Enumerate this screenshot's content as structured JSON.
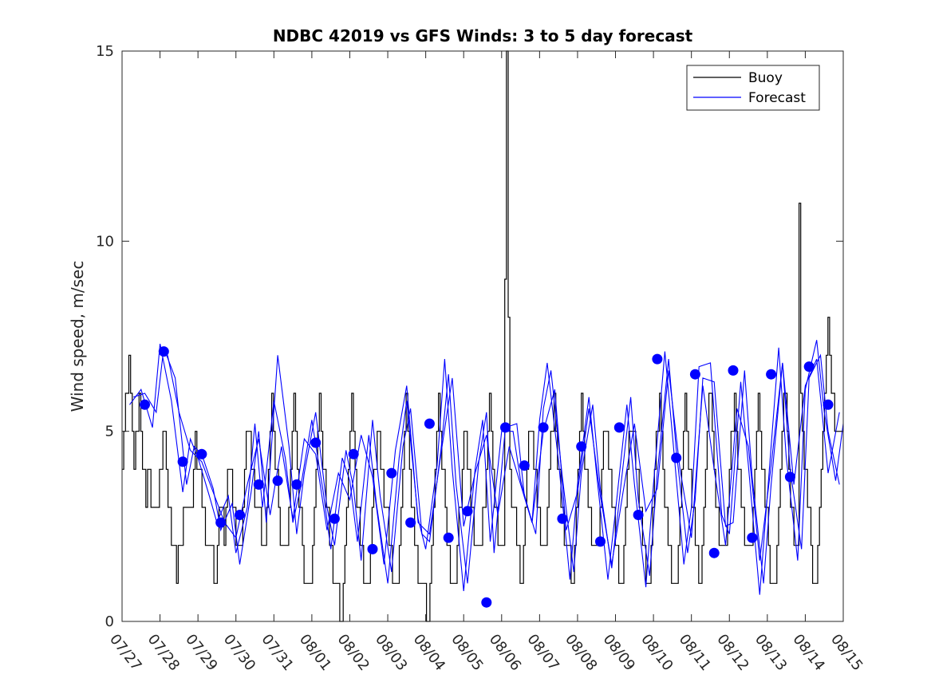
{
  "chart_data": {
    "type": "line",
    "title": "NDBC 42019 vs GFS Winds: 3 to 5 day forecast",
    "xlabel": "",
    "ylabel": "Wind speed, m/sec",
    "ylim": [
      0,
      15
    ],
    "yticks": [
      0,
      5,
      10,
      15
    ],
    "xlim": [
      0,
      19
    ],
    "xticks": [
      "07/27",
      "07/28",
      "07/29",
      "07/30",
      "07/31",
      "08/01",
      "08/02",
      "08/03",
      "08/04",
      "08/05",
      "08/06",
      "08/07",
      "08/08",
      "08/09",
      "08/10",
      "08/11",
      "08/12",
      "08/13",
      "08/14",
      "08/15"
    ],
    "grid": false,
    "legend": {
      "placement": "top-right",
      "entries": [
        "Buoy",
        "Forecast"
      ]
    },
    "colors": {
      "buoy": "#000000",
      "forecast": "#0000ff"
    },
    "buoy_hourly": [
      4,
      5,
      6,
      6,
      7,
      6,
      5,
      4,
      5,
      5,
      6,
      5,
      4,
      4,
      3,
      4,
      4,
      3,
      3,
      3,
      3,
      3,
      4,
      4,
      5,
      5,
      4,
      3,
      3,
      2,
      2,
      2,
      1,
      2,
      2,
      2,
      3,
      3,
      3,
      3,
      3,
      3,
      4,
      5,
      4,
      4,
      4,
      3,
      3,
      2,
      2,
      2,
      2,
      2,
      1,
      1,
      2,
      3,
      3,
      3,
      2,
      3,
      4,
      4,
      4,
      3,
      3,
      2,
      2,
      2,
      2,
      3,
      4,
      5,
      5,
      5,
      4,
      4,
      3,
      3,
      3,
      3,
      2,
      2,
      2,
      3,
      4,
      5,
      6,
      5,
      4,
      4,
      3,
      2,
      2,
      2,
      2,
      2,
      3,
      4,
      5,
      6,
      5,
      4,
      3,
      3,
      2,
      1,
      1,
      1,
      1,
      1,
      2,
      3,
      4,
      5,
      6,
      5,
      4,
      4,
      3,
      3,
      2,
      2,
      1,
      1,
      1,
      1,
      0,
      0,
      1,
      2,
      3,
      4,
      5,
      6,
      5,
      4,
      3,
      3,
      2,
      2,
      1,
      1,
      1,
      1,
      2,
      3,
      4,
      4,
      5,
      5,
      4,
      4,
      3,
      3,
      3,
      2,
      2,
      1,
      1,
      1,
      1,
      2,
      3,
      4,
      5,
      6,
      5,
      4,
      3,
      3,
      2,
      2,
      1,
      1,
      1,
      1,
      1,
      0,
      0,
      1,
      2,
      3,
      4,
      5,
      6,
      5,
      4,
      4,
      3,
      2,
      2,
      1,
      1,
      1,
      1,
      2,
      3,
      3,
      4,
      5,
      5,
      4,
      4,
      3,
      3,
      2,
      2,
      2,
      2,
      2,
      3,
      3,
      4,
      5,
      6,
      5,
      4,
      3,
      3,
      2,
      2,
      2,
      2,
      9,
      15,
      8,
      4,
      3,
      3,
      3,
      2,
      2,
      1,
      1,
      2,
      3,
      4,
      5,
      5,
      5,
      4,
      4,
      3,
      3,
      2,
      2,
      2,
      2,
      3,
      4,
      5,
      5,
      6,
      5,
      4,
      4,
      3,
      3,
      2,
      2,
      2,
      2,
      1,
      1,
      2,
      3,
      4,
      5,
      6,
      5,
      4,
      4,
      3,
      3,
      2,
      2,
      2,
      2,
      2,
      3,
      4,
      5,
      5,
      5,
      4,
      4,
      3,
      3,
      2,
      2,
      1,
      1,
      1,
      2,
      3,
      4,
      5,
      5,
      5,
      5,
      4,
      4,
      3,
      3,
      2,
      2,
      1,
      1,
      1,
      2,
      3,
      4,
      5,
      5,
      6,
      5,
      4,
      3,
      3,
      2,
      2,
      1,
      1,
      1,
      1,
      2,
      3,
      4,
      5,
      6,
      5,
      4,
      4,
      3,
      3,
      2,
      2,
      1,
      1,
      2,
      3,
      4,
      5,
      6,
      6,
      5,
      4,
      3,
      3,
      2,
      2,
      2,
      2,
      2,
      3,
      4,
      5,
      5,
      6,
      5,
      4,
      4,
      3,
      3,
      2,
      2,
      2,
      2,
      2,
      3,
      4,
      5,
      6,
      5,
      4,
      4,
      3,
      3,
      2,
      1,
      1,
      1,
      1,
      2,
      3,
      4,
      5,
      6,
      6,
      5,
      4,
      3,
      3,
      2,
      2,
      2,
      11,
      6,
      5,
      4,
      4,
      3,
      3,
      2,
      1,
      1,
      1,
      2,
      3,
      4,
      5,
      6,
      7,
      8,
      7,
      6,
      6,
      5,
      5,
      5,
      5,
      5
    ],
    "forecast_series": [
      {
        "x": [
          0.2,
          0.5,
          0.8,
          1.0,
          1.3,
          1.6,
          1.8,
          2.0,
          2.3,
          2.5,
          2.8,
          3.0,
          3.3,
          3.5,
          3.7,
          4.0,
          4.3,
          4.5,
          4.7,
          5.0,
          5.3,
          5.5,
          5.8,
          6.0,
          6.2,
          6.5,
          6.7,
          7.0,
          7.3,
          7.5,
          7.8,
          8.0,
          8.3,
          8.5,
          8.7,
          9.0,
          9.3,
          9.5,
          9.7,
          10.0,
          10.3,
          10.5,
          10.8,
          11.0,
          11.2,
          11.5,
          11.8,
          12.0,
          12.3,
          12.5,
          12.8,
          13.0,
          13.3,
          13.5,
          13.8,
          14.0,
          14.3,
          14.5,
          14.8,
          15.0,
          15.2,
          15.5,
          15.8,
          16.0,
          16.3,
          16.5,
          16.8,
          17.0,
          17.3,
          17.5,
          17.8,
          18.0,
          18.3,
          18.5,
          18.8,
          19.0
        ],
        "y": [
          5.7,
          6.1,
          5.1,
          7.3,
          5.8,
          3.4,
          4.8,
          4.3,
          3.3,
          2.6,
          3.3,
          1.8,
          3.0,
          5.2,
          3.0,
          5.8,
          4.3,
          2.6,
          3.5,
          5.3,
          3.4,
          1.9,
          4.3,
          3.7,
          2.1,
          4.9,
          3.1,
          1.0,
          4.3,
          5.8,
          2.7,
          1.9,
          4.1,
          6.9,
          4.0,
          0.8,
          4.0,
          5.3,
          2.1,
          5.0,
          5.0,
          3.7,
          2.6,
          5.3,
          6.8,
          4.2,
          1.1,
          3.6,
          5.9,
          3.9,
          1.1,
          2.9,
          5.7,
          3.6,
          0.9,
          3.6,
          7.1,
          4.9,
          1.5,
          3.0,
          6.7,
          6.8,
          2.8,
          2.3,
          6.3,
          4.1,
          0.7,
          3.3,
          7.2,
          4.3,
          1.6,
          6.1,
          7.4,
          5.5,
          3.7,
          5.2
        ]
      },
      {
        "x": [
          0.3,
          0.6,
          0.9,
          1.1,
          1.4,
          1.7,
          1.9,
          2.1,
          2.4,
          2.6,
          2.9,
          3.1,
          3.4,
          3.6,
          3.8,
          4.1,
          4.4,
          4.6,
          4.8,
          5.1,
          5.4,
          5.6,
          5.9,
          6.1,
          6.3,
          6.6,
          6.8,
          7.1,
          7.4,
          7.6,
          7.9,
          8.1,
          8.4,
          8.6,
          8.8,
          9.1,
          9.4,
          9.6,
          9.8,
          10.1,
          10.4,
          10.6,
          10.9,
          11.1,
          11.3,
          11.6,
          11.9,
          12.1,
          12.4,
          12.6,
          12.9,
          13.1,
          13.4,
          13.6,
          13.9,
          14.1,
          14.4,
          14.6,
          14.9,
          15.1,
          15.3,
          15.6,
          15.9,
          16.1,
          16.4,
          16.6,
          16.9,
          17.1,
          17.4,
          17.6,
          17.9,
          18.1,
          18.4,
          18.6,
          18.9
        ],
        "y": [
          5.9,
          6.0,
          5.5,
          7.2,
          6.4,
          3.6,
          4.6,
          4.4,
          3.5,
          2.4,
          3.1,
          1.5,
          3.4,
          5.0,
          2.6,
          7.0,
          4.6,
          2.3,
          3.9,
          5.5,
          3.0,
          2.0,
          4.5,
          3.5,
          1.6,
          5.3,
          3.3,
          1.3,
          4.6,
          5.6,
          2.3,
          2.1,
          4.5,
          6.5,
          3.6,
          1.0,
          4.2,
          5.5,
          1.8,
          5.1,
          5.2,
          3.3,
          2.3,
          5.6,
          6.6,
          3.8,
          1.3,
          3.9,
          5.7,
          3.5,
          1.4,
          3.2,
          5.9,
          3.2,
          1.2,
          3.9,
          6.9,
          4.5,
          1.8,
          3.2,
          6.4,
          6.3,
          2.5,
          2.6,
          6.6,
          3.8,
          1.0,
          3.6,
          6.8,
          4.0,
          1.9,
          6.4,
          7.0,
          5.0,
          3.6
        ]
      },
      {
        "x": [
          1.2,
          1.5,
          1.8,
          2.1,
          2.4,
          2.7,
          3.0,
          3.3,
          3.6,
          3.9,
          4.2,
          4.5,
          4.8,
          5.1,
          5.4,
          5.7,
          6.0,
          6.3,
          6.6,
          6.9,
          7.2,
          7.5,
          7.8,
          8.1,
          8.4,
          8.7,
          9.0,
          9.3,
          9.6,
          9.9,
          10.2,
          10.5,
          10.8,
          11.1,
          11.4,
          11.7,
          12.0,
          12.3,
          12.6,
          12.9,
          13.2,
          13.5,
          13.8,
          14.1,
          14.4,
          14.7,
          15.0,
          15.3,
          15.6,
          15.9,
          16.2,
          16.5,
          16.8,
          17.1,
          17.4,
          17.7,
          18.0,
          18.3,
          18.6,
          18.9
        ],
        "y": [
          7.0,
          5.5,
          4.5,
          4.2,
          3.4,
          2.6,
          2.2,
          3.6,
          4.8,
          2.8,
          4.6,
          2.7,
          4.8,
          4.4,
          2.4,
          3.9,
          3.2,
          4.9,
          3.8,
          1.5,
          4.5,
          6.2,
          2.6,
          2.3,
          4.4,
          6.4,
          2.5,
          3.9,
          4.9,
          2.8,
          4.6,
          3.6,
          2.6,
          5.0,
          6.1,
          2.4,
          3.4,
          5.6,
          3.3,
          1.5,
          3.4,
          5.2,
          2.9,
          3.5,
          6.6,
          4.0,
          2.2,
          6.2,
          4.0,
          2.0,
          5.6,
          4.6,
          1.6,
          4.1,
          6.8,
          3.6,
          6.2,
          6.9,
          3.9,
          5.5
        ]
      }
    ],
    "forecast_points": {
      "x": [
        0.6,
        1.1,
        1.6,
        2.1,
        2.6,
        3.1,
        3.6,
        4.1,
        4.6,
        5.1,
        5.6,
        6.1,
        6.6,
        7.1,
        7.6,
        8.1,
        8.6,
        9.1,
        9.6,
        10.1,
        10.6,
        11.1,
        11.6,
        12.1,
        12.6,
        13.1,
        13.6,
        14.1,
        14.6,
        15.1,
        15.6,
        16.1,
        16.6,
        17.1,
        17.6,
        18.1,
        18.6
      ],
      "y": [
        5.7,
        7.1,
        4.2,
        4.4,
        2.6,
        2.8,
        3.6,
        3.7,
        3.6,
        4.7,
        2.7,
        4.4,
        1.9,
        3.9,
        2.6,
        5.2,
        2.2,
        2.9,
        0.5,
        5.1,
        4.1,
        5.1,
        2.7,
        4.6,
        2.1,
        5.1,
        2.8,
        6.9,
        4.3,
        6.5,
        1.8,
        6.6,
        2.2,
        6.5,
        3.8,
        6.7,
        5.7
      ]
    }
  }
}
